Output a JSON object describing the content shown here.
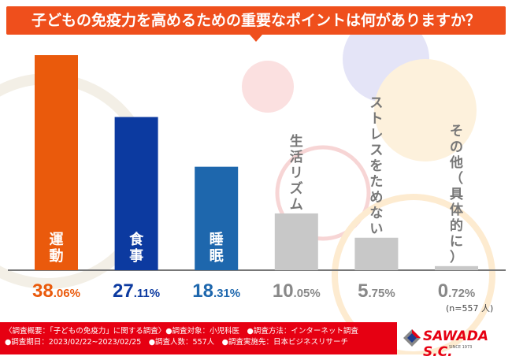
{
  "title": "子どもの免疫力を高めるための重要なポイントは何がありますか？",
  "chart_data": {
    "type": "bar",
    "categories": [
      "運動",
      "食事",
      "睡眠",
      "生活リズム",
      "ストレスをためない",
      "その他（具体的に）"
    ],
    "values": [
      38.06,
      27.11,
      18.31,
      10.05,
      5.75,
      0.72
    ],
    "value_labels": [
      [
        "38",
        ".06%"
      ],
      [
        "27",
        ".11%"
      ],
      [
        "18",
        ".31%"
      ],
      [
        "10",
        ".05%"
      ],
      [
        "5",
        ".75%"
      ],
      [
        "0",
        ".72%"
      ]
    ],
    "colors": [
      "#ea5a0c",
      "#0c3aa0",
      "#1e67ad",
      "#c8c8c8",
      "#c8c8c8",
      "#c8c8c8"
    ],
    "label_colors": [
      "#ea5a0c",
      "#0c3aa0",
      "#1e67ad",
      "#888888",
      "#888888",
      "#888888"
    ],
    "ylim": [
      0,
      40
    ],
    "grid": false,
    "note": "(n=557 人)"
  },
  "footer": {
    "line1": "〈調査概要：「子どもの免疫力」に関する調査〉●調査対象：小児科医　●調査方法：インターネット調査",
    "line2": "●調査期日：2023/02/22~2023/02/25　●調査人数：557人　●調査実施先：日本ビジネスリサーチ"
  },
  "logo": {
    "name": "SAWADA S.C.",
    "since": "SINCE 1973"
  }
}
